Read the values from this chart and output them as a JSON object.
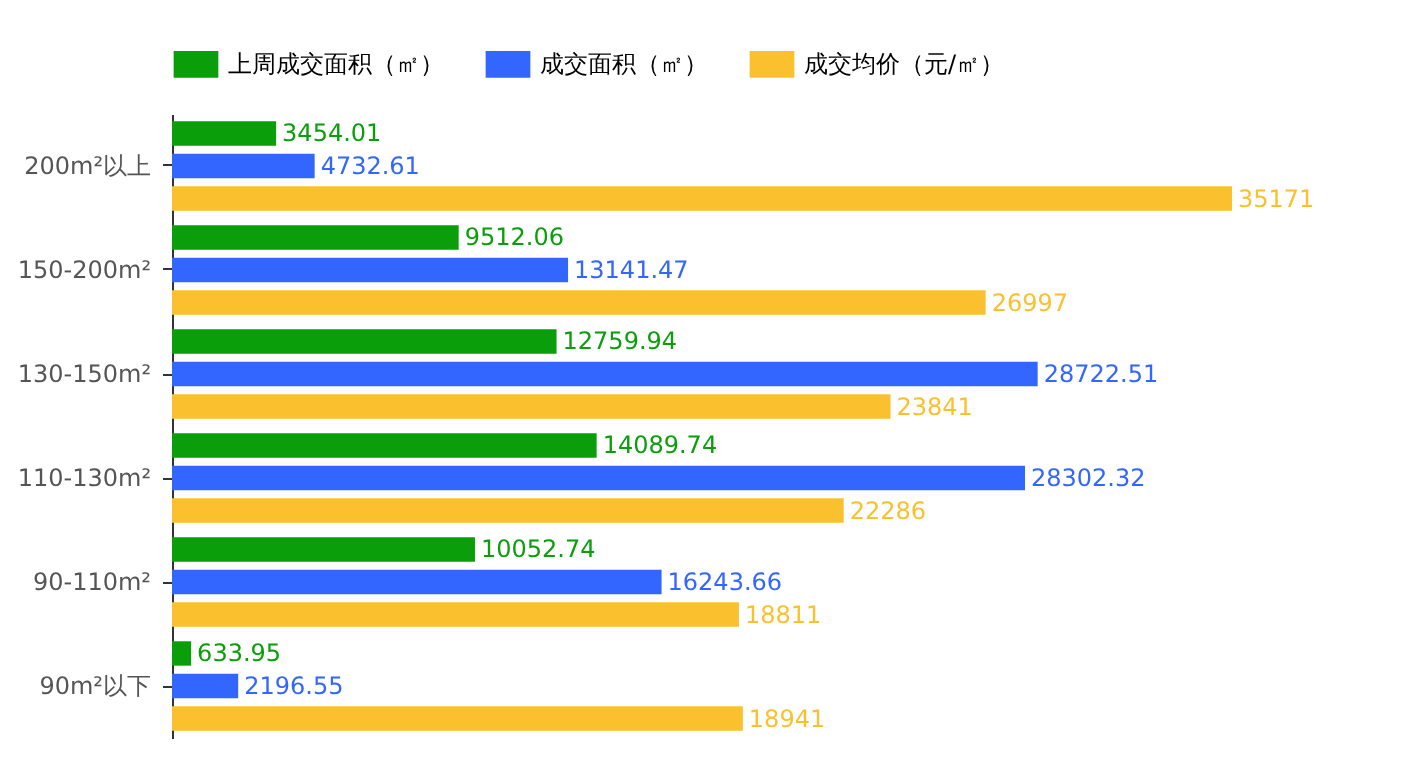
{
  "chart_data": {
    "type": "bar",
    "orientation": "horizontal",
    "data_labels": true,
    "legend": "top",
    "tick_labels": "y",
    "categories": [
      "200m²以上",
      "150-200m²",
      "130-150m²",
      "110-130m²",
      "90-110m²",
      "90m²以下"
    ],
    "series": [
      {
        "name": "上周成交面积（㎡）",
        "color": "#0a9e0a",
        "values": [
          3454.01,
          9512.06,
          12759.94,
          14089.74,
          10052.74,
          633.95
        ]
      },
      {
        "name": "成交面积（㎡）",
        "color": "#3366ff",
        "values": [
          4732.61,
          13141.47,
          28722.51,
          28302.32,
          16243.66,
          2196.55
        ]
      },
      {
        "name": "成交均价（元/㎡）",
        "color": "#fbc02d",
        "values": [
          35171,
          26997,
          23841,
          22286,
          18811,
          18941
        ]
      }
    ]
  }
}
